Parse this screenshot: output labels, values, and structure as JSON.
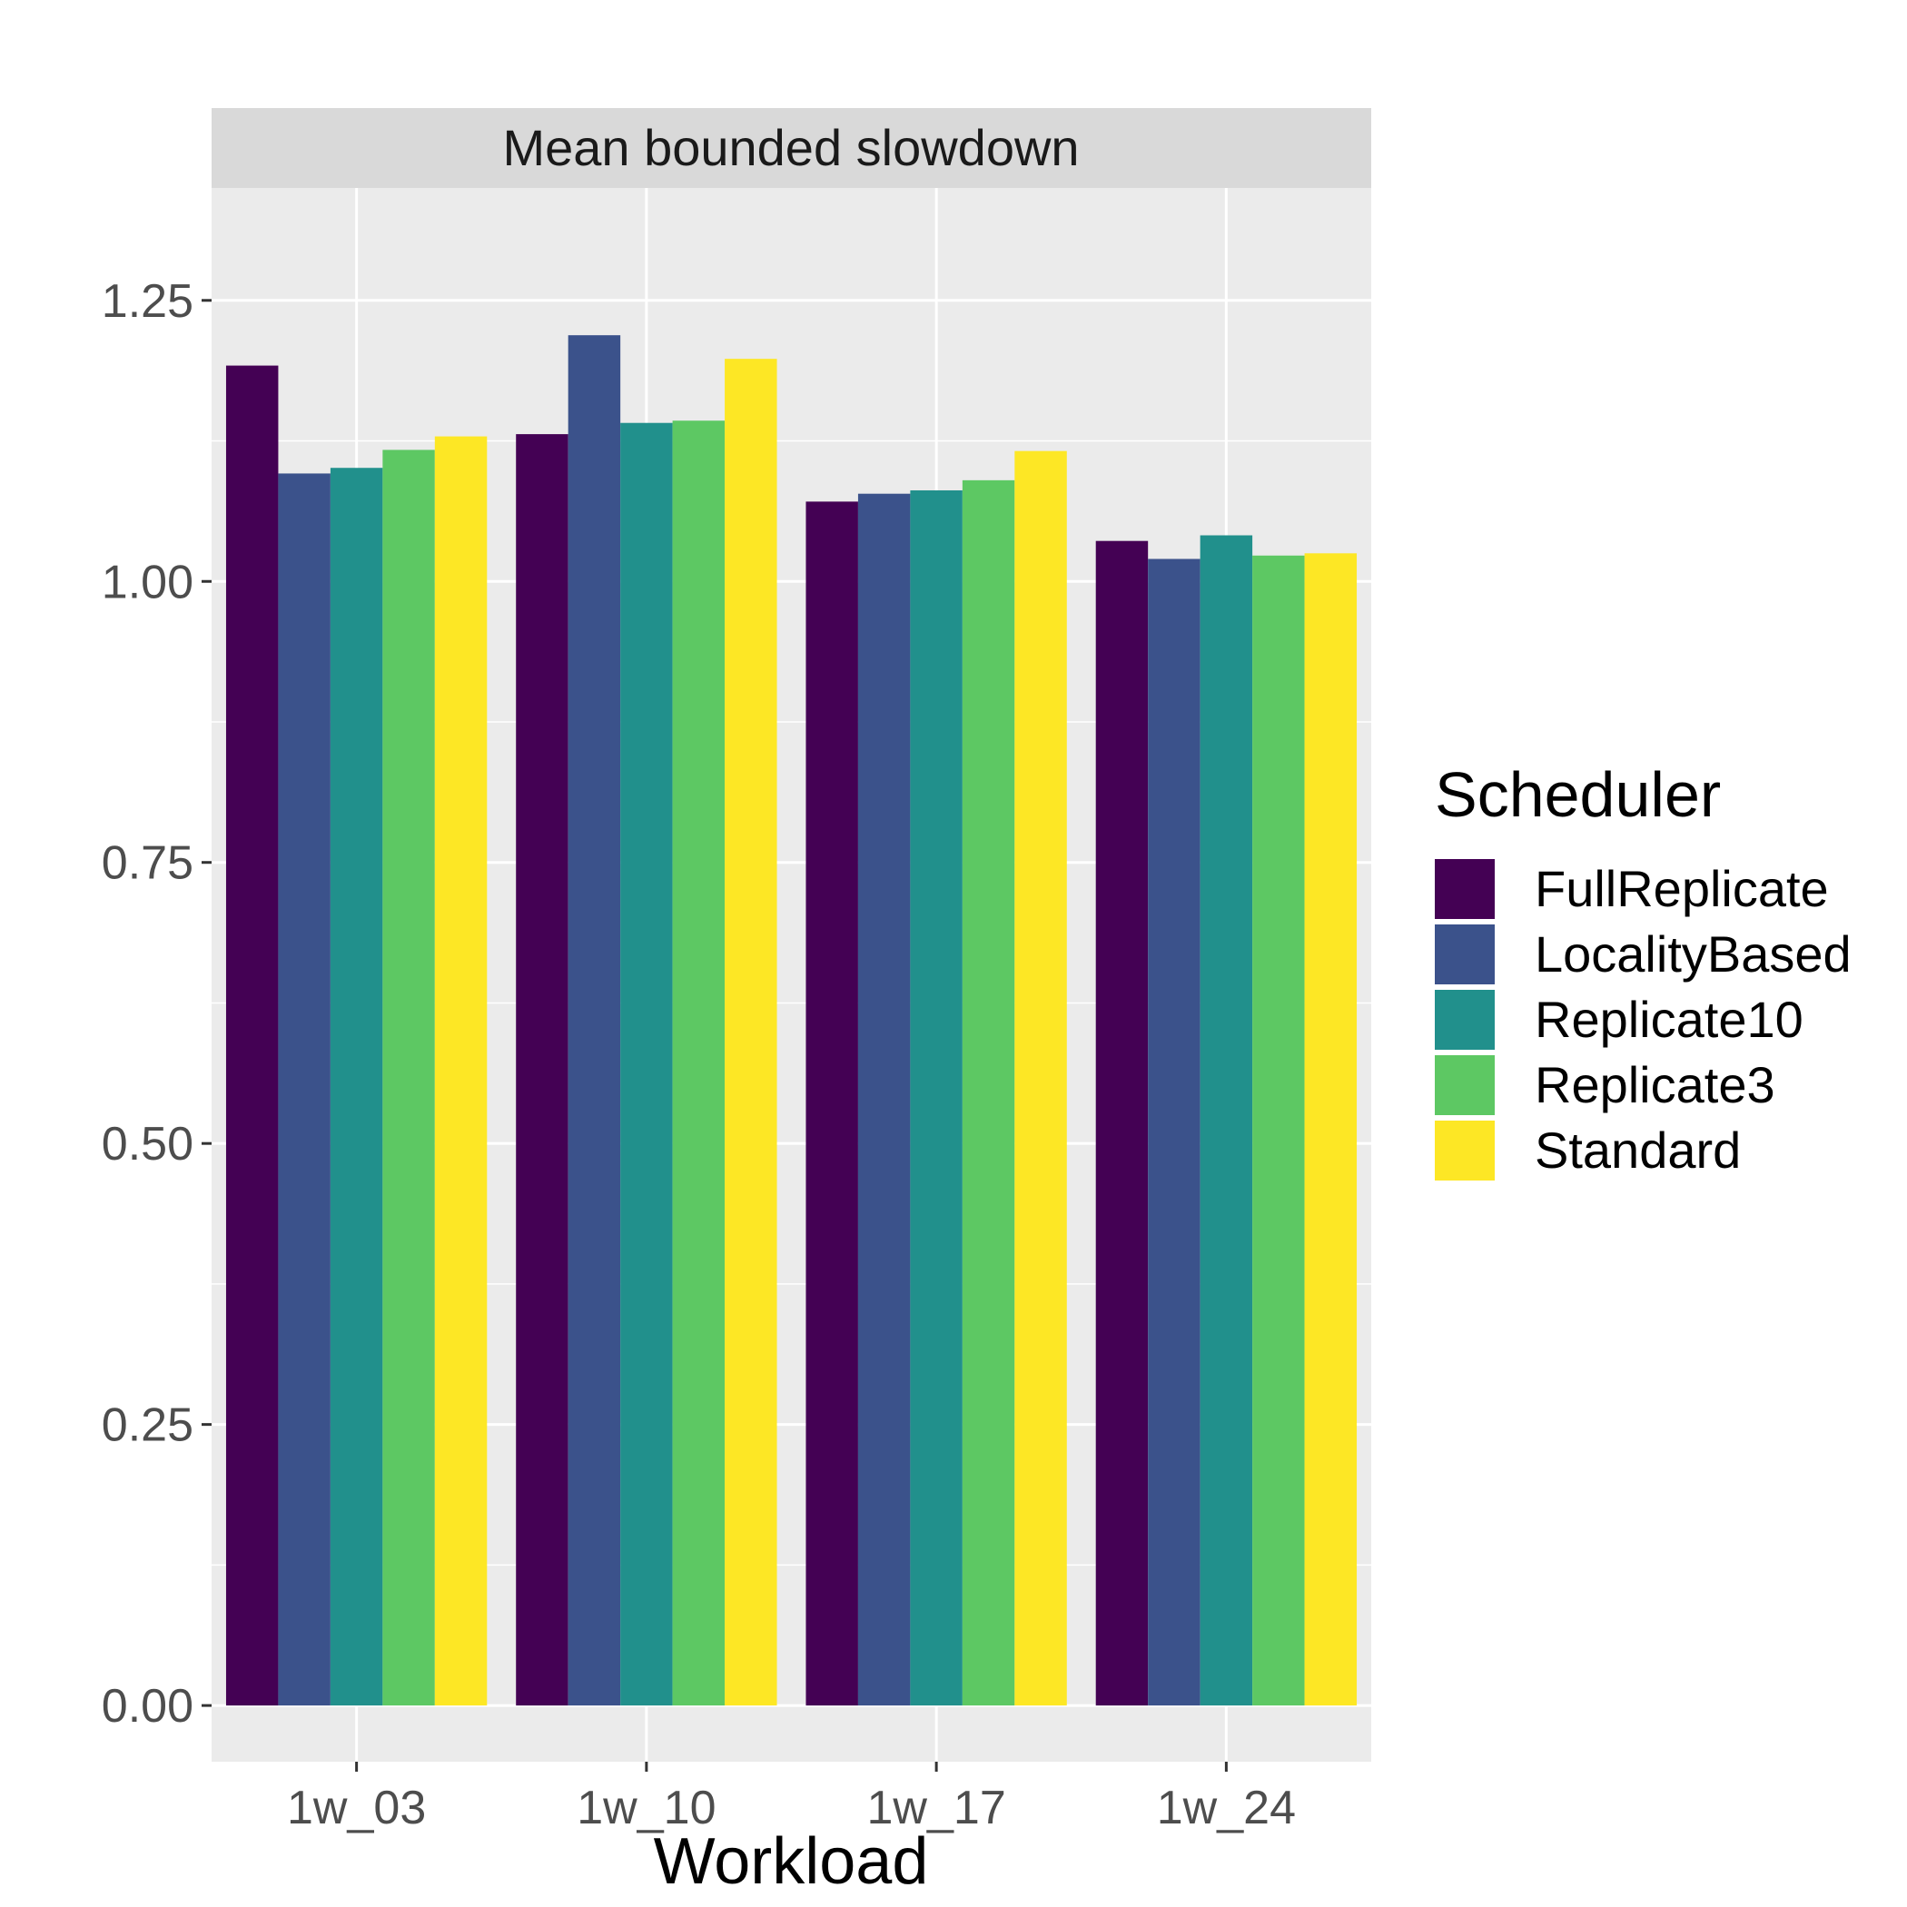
{
  "chart_data": {
    "type": "bar",
    "facet_title": "Mean bounded slowdown",
    "xlabel": "Workload",
    "ylabel": "",
    "categories": [
      "1w_03",
      "1w_10",
      "1w_17",
      "1w_24"
    ],
    "ylim": [
      -0.05,
      1.35
    ],
    "yticks": [
      0,
      0.25,
      0.5,
      0.75,
      1,
      1.25
    ],
    "ytick_labels": [
      "0.00",
      "0.25",
      "0.50",
      "0.75",
      "1.00",
      "1.25"
    ],
    "grid": true,
    "legend_title": "Scheduler",
    "legend_position": "right",
    "series": [
      {
        "name": "FullReplicate",
        "color": "#440154",
        "values": [
          1.192,
          1.131,
          1.071,
          1.036
        ]
      },
      {
        "name": "LocalityBased",
        "color": "#3B528B",
        "values": [
          1.096,
          1.219,
          1.078,
          1.02
        ]
      },
      {
        "name": "Replicate10",
        "color": "#21908C",
        "values": [
          1.101,
          1.141,
          1.081,
          1.041
        ]
      },
      {
        "name": "Replicate3",
        "color": "#5DC863",
        "values": [
          1.117,
          1.143,
          1.09,
          1.023
        ]
      },
      {
        "name": "Standard",
        "color": "#FDE725",
        "values": [
          1.129,
          1.198,
          1.116,
          1.025
        ]
      }
    ]
  }
}
